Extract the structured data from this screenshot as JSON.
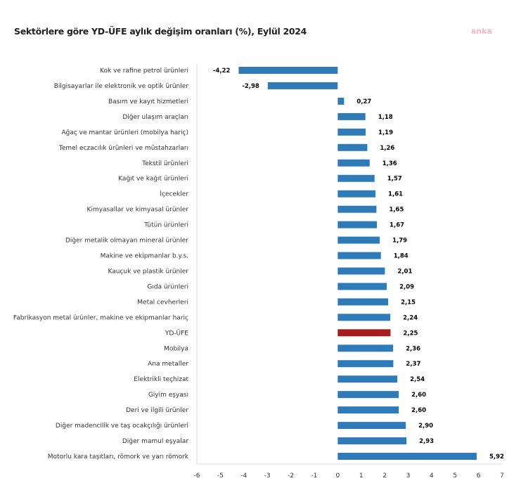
{
  "chart_data": {
    "type": "bar",
    "orientation": "horizontal",
    "title": "Sektörlere göre YD-ÜFE aylık değişim oranları (%), Eylül 2024",
    "watermark": "anka",
    "categories": [
      "Kok ve rafine petrol ürünleri",
      "Bilgisayarlar ile elektronik ve optik ürünler",
      "Basım ve kayıt hizmetleri",
      "Diğer ulaşım araçları",
      "Ağaç ve mantar ürünleri (mobilya hariç)",
      "Temel eczacılık ürünleri ve müstahzarları",
      "Tekstil ürünleri",
      "Kağıt ve kağıt ürünleri",
      "İçecekler",
      "Kimyasallar ve kimyasal ürünler",
      "Tütün ürünleri",
      "Diğer metalik olmayan mineral ürünler",
      "Makine ve ekipmanlar b.y.s.",
      "Kauçuk ve plastik ürünler",
      "Gıda ürünleri",
      "Metal cevherleri",
      "Fabrikasyon metal ürünler, makine ve ekipmanlar hariç",
      "YD-ÜFE",
      "Mobilya",
      "Ana metaller",
      "Elektrikli teçhizat",
      "Giyim eşyası",
      "Deri ve ilgili ürünler",
      "Diğer madencilik ve taş ocakçılığı ürünleri",
      "Diğer mamul eşyalar",
      "Motorlu kara taşıtları, römork ve yarı römork"
    ],
    "values": [
      -4.22,
      -2.98,
      0.27,
      1.18,
      1.19,
      1.26,
      1.36,
      1.57,
      1.61,
      1.65,
      1.67,
      1.79,
      1.84,
      2.01,
      2.09,
      2.15,
      2.24,
      2.25,
      2.36,
      2.37,
      2.54,
      2.6,
      2.6,
      2.9,
      2.93,
      5.92
    ],
    "value_labels": [
      "-4,22",
      "-2,98",
      "0,27",
      "1,18",
      "1,19",
      "1,26",
      "1,36",
      "1,57",
      "1,61",
      "1,65",
      "1,67",
      "1,79",
      "1,84",
      "2,01",
      "2,09",
      "2,15",
      "2,24",
      "2,25",
      "2,36",
      "2,37",
      "2,54",
      "2,60",
      "2,60",
      "2,90",
      "2,93",
      "5,92"
    ],
    "highlight": "YD-ÜFE",
    "colors": {
      "bar": "#2e7bb8",
      "highlight": "#a51b1f"
    },
    "xlim": [
      -6,
      7
    ],
    "xticks": [
      "-6",
      "-5",
      "-4",
      "-3",
      "-2",
      "-1",
      "0",
      "1",
      "2",
      "3",
      "4",
      "5",
      "6",
      "7"
    ],
    "grid": false,
    "xlabel": "",
    "ylabel": ""
  }
}
